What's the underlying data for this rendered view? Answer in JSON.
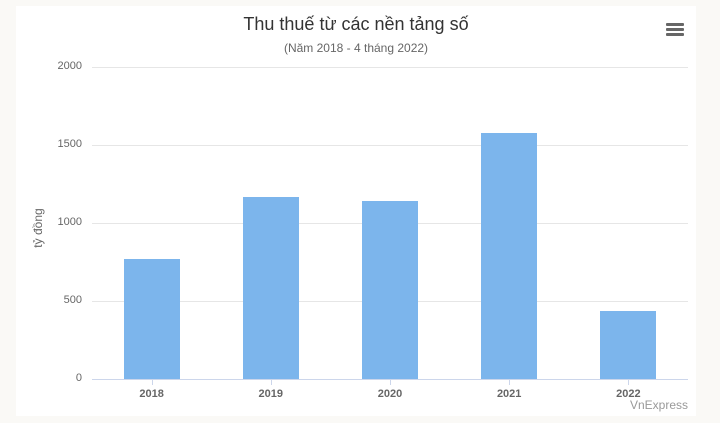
{
  "chart_data": {
    "type": "bar",
    "title": "Thu thuế từ các nền tảng số",
    "subtitle": "(Năm 2018 - 4 tháng 2022)",
    "xlabel": "",
    "ylabel": "tỷ đồng",
    "categories": [
      "2018",
      "2019",
      "2020",
      "2021",
      "2022"
    ],
    "values": [
      770,
      1165,
      1140,
      1580,
      436
    ],
    "ylim": [
      0,
      2000
    ],
    "yticks": [
      "0",
      "500",
      "1000",
      "1500",
      "2000"
    ],
    "grid": true,
    "legend": false,
    "bar_color": "#7cb5ec"
  },
  "ui": {
    "menu_icon": "hamburger-menu-icon",
    "credit": "VnExpress"
  }
}
